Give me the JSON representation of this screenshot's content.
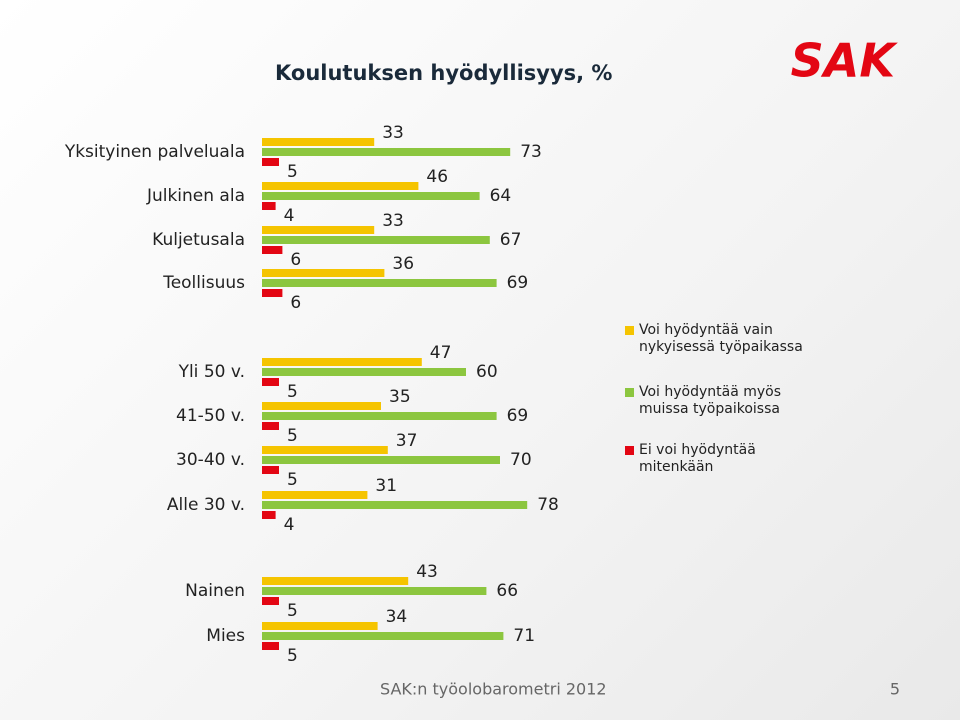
{
  "title": "Koulutuksen hyödyllisyys, %",
  "logo": "SAK",
  "footer": "SAK:n työolobarometri 2012",
  "page_number": "5",
  "chart_data": {
    "type": "bar",
    "categories": [
      [
        "Yksityinen palveluala",
        "Julkinen ala",
        "Kuljetusala",
        "Teollisuus"
      ],
      [
        "Yli 50 v.",
        "41-50 v.",
        "30-40 v.",
        "Alle 30 v."
      ],
      [
        "Nainen",
        "Mies"
      ]
    ],
    "series": [
      {
        "name": "Voi hyödyntää vain nykyisessä työpaikassa",
        "color": "#f5c400",
        "values": [
          [
            33,
            46,
            33,
            36
          ],
          [
            47,
            35,
            37,
            31
          ],
          [
            43,
            34
          ]
        ]
      },
      {
        "name": "Voi hyödyntää myös muissa työpaikoissa",
        "color": "#8cc63f",
        "values": [
          [
            73,
            64,
            67,
            69
          ],
          [
            60,
            69,
            70,
            78
          ],
          [
            66,
            71
          ]
        ]
      },
      {
        "name": "Ei voi hyödyntää mitenkään",
        "color": "#e30613",
        "values": [
          [
            5,
            4,
            6,
            6
          ],
          [
            5,
            5,
            5,
            4
          ],
          [
            5,
            5
          ]
        ]
      }
    ]
  }
}
